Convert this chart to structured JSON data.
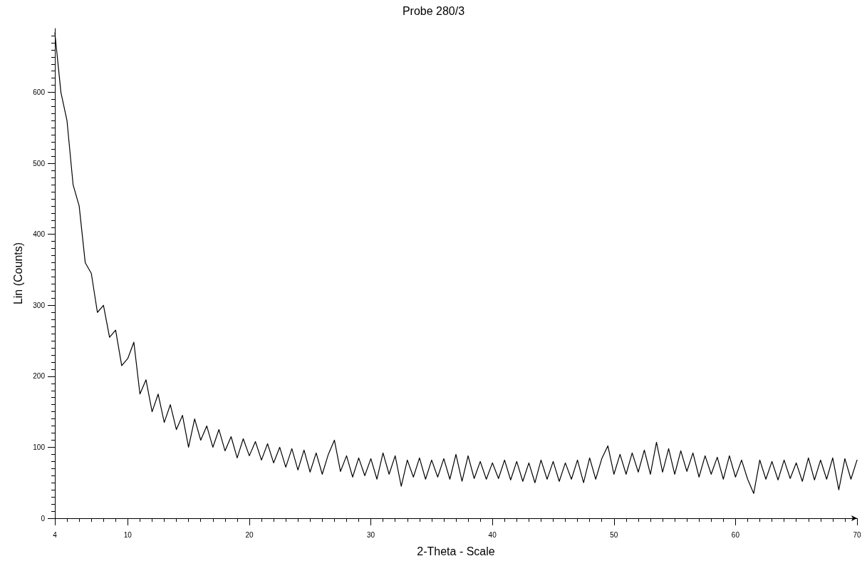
{
  "chart_data": {
    "type": "line",
    "title": "Probe 280/3",
    "xlabel": "2-Theta - Scale",
    "ylabel": "Lin (Counts)",
    "xlim": [
      4,
      70
    ],
    "xticks": [
      4,
      10,
      20,
      30,
      40,
      50,
      60,
      70
    ],
    "ylim": [
      0,
      690
    ],
    "yticks": [
      0,
      100,
      200,
      300,
      400,
      500,
      600
    ],
    "grid": false,
    "marker": "none",
    "line_style": "solid",
    "x": [
      4,
      4.5,
      5,
      5.5,
      6,
      6.5,
      7,
      7.5,
      8,
      8.5,
      9,
      9.5,
      10,
      10.5,
      11,
      11.5,
      12,
      12.5,
      13,
      13.5,
      14,
      14.5,
      15,
      15.5,
      16,
      16.5,
      17,
      17.5,
      18,
      18.5,
      19,
      19.5,
      20,
      20.5,
      21,
      21.5,
      22,
      22.5,
      23,
      23.5,
      24,
      24.5,
      25,
      25.5,
      26,
      26.5,
      27,
      27.5,
      28,
      28.5,
      29,
      29.5,
      30,
      30.5,
      31,
      31.5,
      32,
      32.5,
      33,
      33.5,
      34,
      34.5,
      35,
      35.5,
      36,
      36.5,
      37,
      37.5,
      38,
      38.5,
      39,
      39.5,
      40,
      40.5,
      41,
      41.5,
      42,
      42.5,
      43,
      43.5,
      44,
      44.5,
      45,
      45.5,
      46,
      46.5,
      47,
      47.5,
      48,
      48.5,
      49,
      49.5,
      50,
      50.5,
      51,
      51.5,
      52,
      52.5,
      53,
      53.5,
      54,
      54.5,
      55,
      55.5,
      56,
      56.5,
      57,
      57.5,
      58,
      58.5,
      59,
      59.5,
      60,
      60.5,
      61,
      61.5,
      62,
      62.5,
      63,
      63.5,
      64,
      64.5,
      65,
      65.5,
      66,
      66.5,
      67,
      67.5,
      68,
      68.5,
      69,
      69.5,
      70
    ],
    "series": [
      {
        "color": "#000000",
        "values": [
          684,
          600,
          560,
          470,
          440,
          360,
          345,
          290,
          300,
          255,
          265,
          215,
          225,
          248,
          175,
          195,
          150,
          175,
          135,
          160,
          125,
          145,
          100,
          140,
          110,
          130,
          100,
          125,
          95,
          115,
          85,
          112,
          88,
          108,
          82,
          105,
          78,
          100,
          72,
          98,
          68,
          96,
          65,
          92,
          62,
          90,
          110,
          66,
          88,
          58,
          85,
          60,
          84,
          55,
          92,
          62,
          88,
          45,
          82,
          58,
          85,
          55,
          82,
          58,
          84,
          55,
          90,
          52,
          88,
          56,
          80,
          55,
          78,
          56,
          82,
          54,
          80,
          52,
          78,
          50,
          82,
          55,
          80,
          52,
          78,
          55,
          82,
          50,
          85,
          55,
          84,
          102,
          62,
          90,
          62,
          92,
          65,
          96,
          62,
          107,
          65,
          98,
          62,
          95,
          66,
          92,
          58,
          88,
          62,
          86,
          55,
          88,
          58,
          82,
          55,
          35,
          82,
          55,
          80,
          54,
          82,
          56,
          78,
          52,
          85,
          54,
          82,
          55,
          85,
          40,
          84,
          55,
          82
        ]
      }
    ]
  }
}
